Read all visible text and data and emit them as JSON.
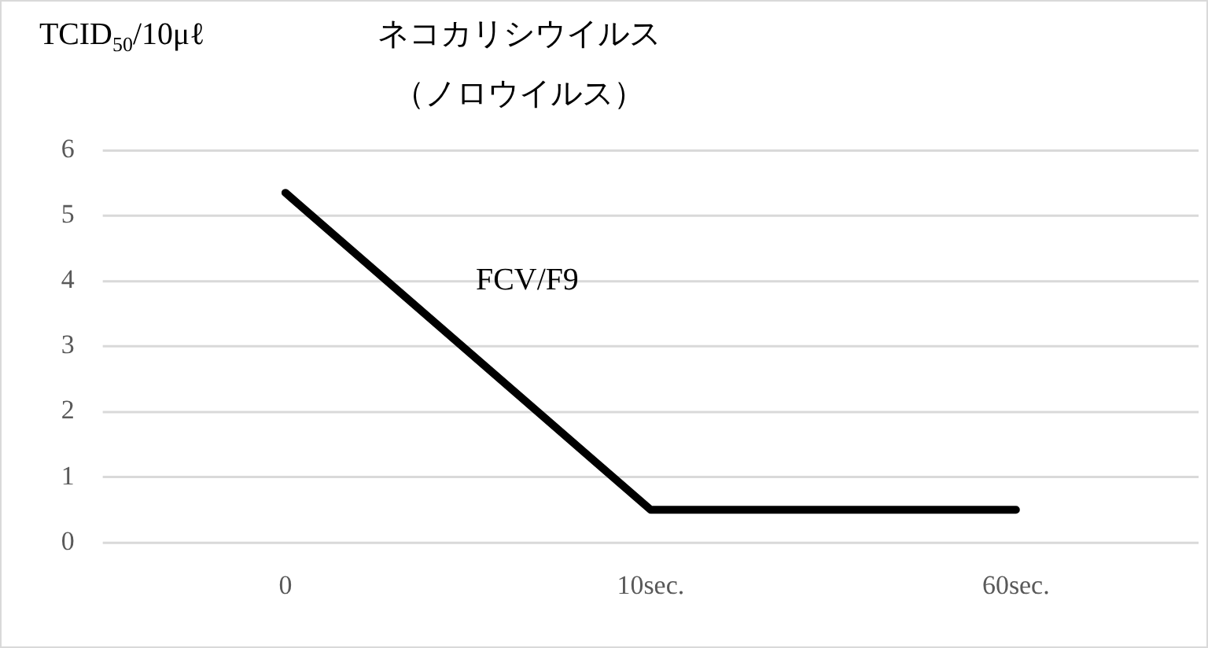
{
  "chart_data": {
    "type": "line",
    "title": "ネコカリシウイルス",
    "subtitle": "（ノロウイルス）",
    "ylabel": "TCID$_{50}$/10μℓ",
    "categories": [
      "0",
      "10sec.",
      "60sec."
    ],
    "series": [
      {
        "name": "FCV/F9",
        "color": "#000000",
        "values": [
          5.35,
          0.5,
          0.5
        ]
      }
    ],
    "ylim": [
      0,
      6
    ],
    "yticks": [
      0,
      1,
      2,
      3,
      4,
      5,
      6
    ],
    "grid": "y",
    "legend": false,
    "marker": "none",
    "line_style": "solid"
  }
}
